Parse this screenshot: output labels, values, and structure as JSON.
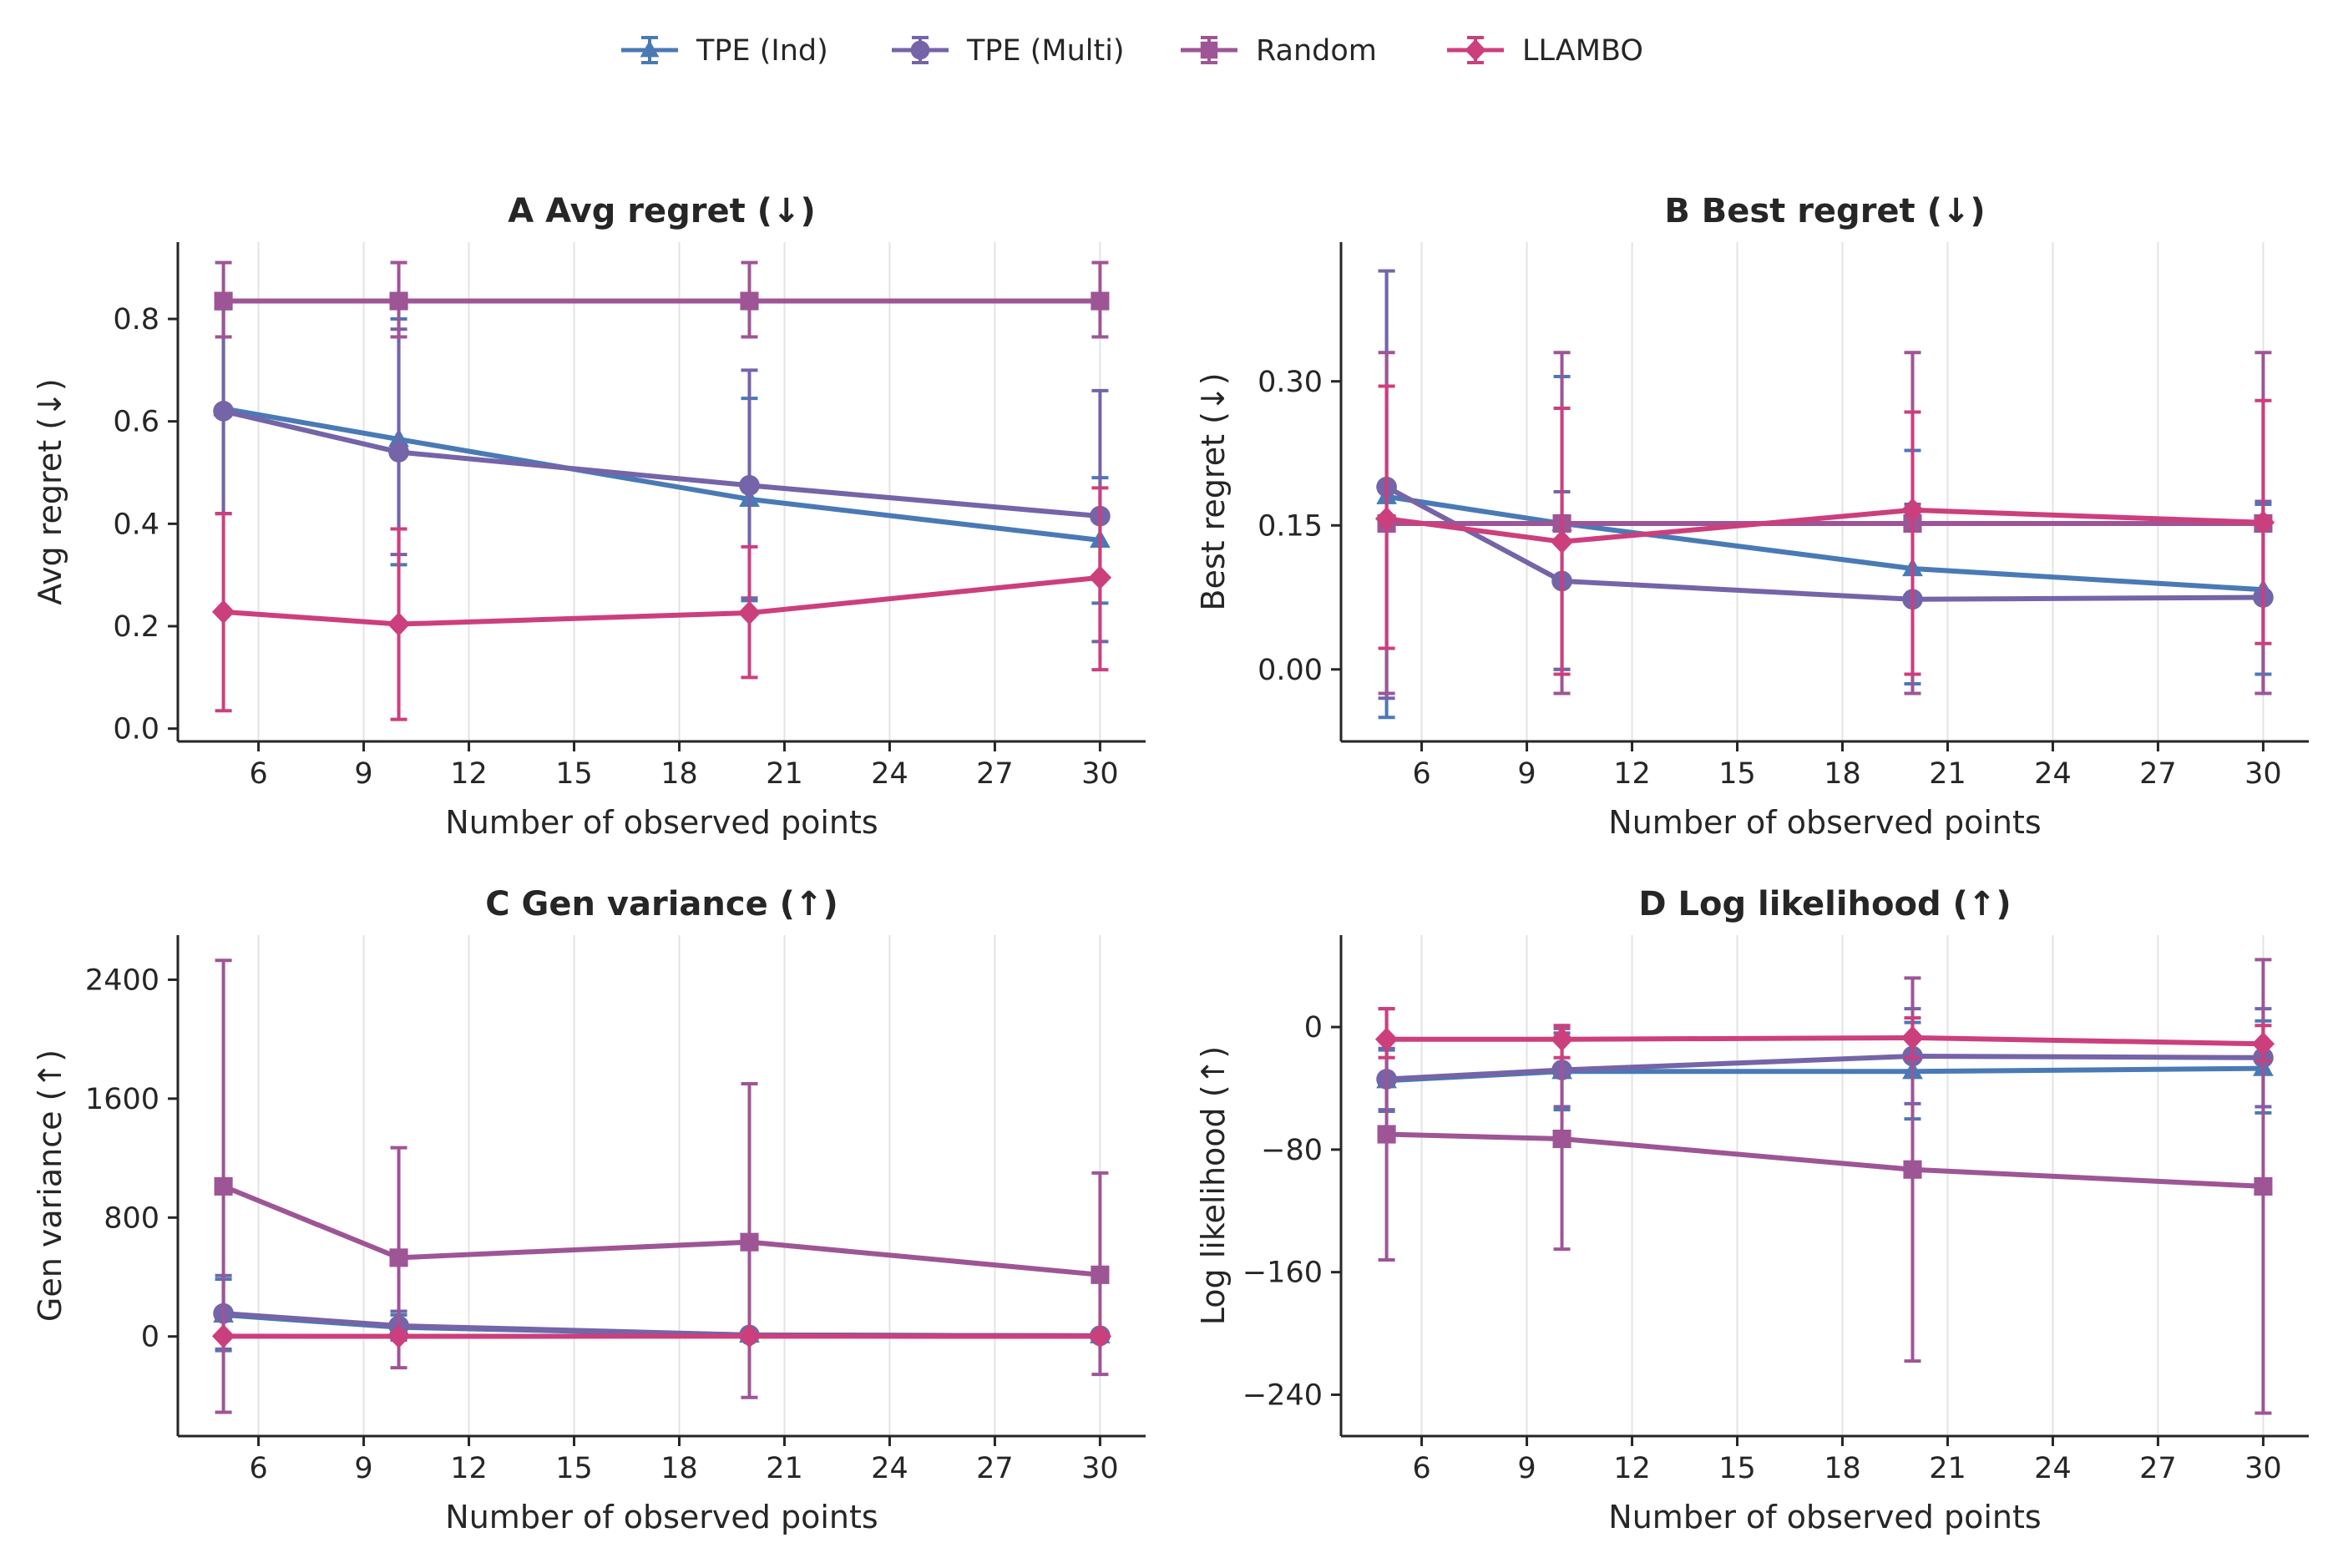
{
  "legend": [
    {
      "label": "TPE (Ind)",
      "color": "#4a7ab5",
      "marker": "triangle"
    },
    {
      "label": "TPE (Multi)",
      "color": "#7564a8",
      "marker": "circle"
    },
    {
      "label": "Random",
      "color": "#9e5596",
      "marker": "square"
    },
    {
      "label": "LLAMBO",
      "color": "#cc3f7d",
      "marker": "diamond"
    }
  ],
  "chart_data": [
    {
      "type": "line",
      "panel": "A",
      "title": "A  Avg regret (↓)",
      "xlabel": "Number of observed points",
      "ylabel": "Avg regret (↓)",
      "xlim": [
        3.7,
        31.3
      ],
      "ylim": [
        -0.025,
        0.95
      ],
      "xticks": [
        6,
        9,
        12,
        15,
        18,
        21,
        24,
        27,
        30
      ],
      "yticks": [
        0.0,
        0.2,
        0.4,
        0.6,
        0.8
      ],
      "ytick_labels": [
        "0.0",
        "0.2",
        "0.4",
        "0.6",
        "0.8"
      ],
      "x": [
        5,
        10,
        20,
        30
      ],
      "series": [
        {
          "name": "TPE (Ind)",
          "values": [
            0.625,
            0.565,
            0.448,
            0.368
          ],
          "lower": [
            0.42,
            0.32,
            0.25,
            0.245
          ],
          "upper": [
            0.83,
            0.8,
            0.645,
            0.49
          ]
        },
        {
          "name": "TPE (Multi)",
          "values": [
            0.62,
            0.54,
            0.475,
            0.415
          ],
          "lower": [
            0.42,
            0.34,
            0.255,
            0.17
          ],
          "upper": [
            0.82,
            0.78,
            0.7,
            0.66
          ]
        },
        {
          "name": "Random",
          "values": [
            0.835,
            0.835,
            0.835,
            0.835
          ],
          "lower": [
            0.765,
            0.765,
            0.765,
            0.765
          ],
          "upper": [
            0.91,
            0.91,
            0.91,
            0.91
          ]
        },
        {
          "name": "LLAMBO",
          "values": [
            0.228,
            0.204,
            0.226,
            0.295
          ],
          "lower": [
            0.035,
            0.018,
            0.1,
            0.115
          ],
          "upper": [
            0.42,
            0.39,
            0.355,
            0.47
          ]
        }
      ]
    },
    {
      "type": "line",
      "panel": "B",
      "title": "B  Best regret (↓)",
      "xlabel": "Number of observed points",
      "ylabel": "Best regret (↓)",
      "xlim": [
        3.7,
        31.3
      ],
      "ylim": [
        -0.075,
        0.445
      ],
      "xticks": [
        6,
        9,
        12,
        15,
        18,
        21,
        24,
        27,
        30
      ],
      "yticks": [
        0.0,
        0.15,
        0.3
      ],
      "ytick_labels": [
        "0.00",
        "0.15",
        "0.30"
      ],
      "x": [
        5,
        10,
        20,
        30
      ],
      "series": [
        {
          "name": "TPE (Ind)",
          "values": [
            0.18,
            0.152,
            0.105,
            0.083
          ],
          "lower": [
            -0.05,
            0.0,
            -0.015,
            -0.005
          ],
          "upper": [
            0.415,
            0.305,
            0.228,
            0.172
          ]
        },
        {
          "name": "TPE (Multi)",
          "values": [
            0.19,
            0.092,
            0.073,
            0.075
          ],
          "lower": [
            -0.03,
            0.0,
            -0.025,
            -0.025
          ],
          "upper": [
            0.415,
            0.185,
            0.172,
            0.175
          ]
        },
        {
          "name": "Random",
          "values": [
            0.152,
            0.152,
            0.152,
            0.152
          ],
          "lower": [
            -0.025,
            -0.025,
            -0.025,
            -0.025
          ],
          "upper": [
            0.33,
            0.33,
            0.33,
            0.33
          ]
        },
        {
          "name": "LLAMBO",
          "values": [
            0.157,
            0.133,
            0.166,
            0.153
          ],
          "lower": [
            0.022,
            -0.005,
            -0.005,
            0.027
          ],
          "upper": [
            0.295,
            0.272,
            0.268,
            0.28
          ]
        }
      ]
    },
    {
      "type": "line",
      "panel": "C",
      "title": "C  Gen variance (↑)",
      "xlabel": "Number of observed points",
      "ylabel": "Gen variance (↑)",
      "xlim": [
        3.7,
        31.3
      ],
      "ylim": [
        -670,
        2700
      ],
      "xticks": [
        6,
        9,
        12,
        15,
        18,
        21,
        24,
        27,
        30
      ],
      "yticks": [
        0,
        800,
        1600,
        2400
      ],
      "ytick_labels": [
        "0",
        "800",
        "1600",
        "2400"
      ],
      "x": [
        5,
        10,
        20,
        30
      ],
      "series": [
        {
          "name": "TPE (Ind)",
          "values": [
            145,
            62,
            10,
            5
          ],
          "lower": [
            -95,
            -20,
            -8,
            -3
          ],
          "upper": [
            385,
            145,
            28,
            13
          ]
        },
        {
          "name": "TPE (Multi)",
          "values": [
            155,
            72,
            10,
            5
          ],
          "lower": [
            -85,
            -25,
            -8,
            -3
          ],
          "upper": [
            410,
            170,
            28,
            13
          ]
        },
        {
          "name": "Random",
          "values": [
            1010,
            530,
            635,
            415
          ],
          "lower": [
            -510,
            -210,
            -410,
            -255
          ],
          "upper": [
            2530,
            1270,
            1700,
            1100
          ]
        },
        {
          "name": "LLAMBO",
          "values": [
            2,
            1,
            2,
            1
          ],
          "lower": [
            -5,
            -5,
            -5,
            -5
          ],
          "upper": [
            9,
            7,
            8,
            7
          ]
        }
      ]
    },
    {
      "type": "line",
      "panel": "D",
      "title": "D  Log likelihood (↑)",
      "xlabel": "Number of observed points",
      "ylabel": "Log likelihood (↑)",
      "xlim": [
        3.7,
        31.3
      ],
      "ylim": [
        -267,
        60
      ],
      "xticks": [
        6,
        9,
        12,
        15,
        18,
        21,
        24,
        27,
        30
      ],
      "yticks": [
        -240,
        -160,
        -80,
        0
      ],
      "ytick_labels": [
        "−240",
        "−160",
        "−80",
        "0"
      ],
      "x": [
        5,
        10,
        20,
        30
      ],
      "series": [
        {
          "name": "TPE (Ind)",
          "values": [
            -35,
            -29,
            -29,
            -27
          ],
          "lower": [
            -55,
            -54,
            -60,
            -56
          ],
          "upper": [
            -15,
            -4,
            3,
            4
          ]
        },
        {
          "name": "TPE (Multi)",
          "values": [
            -34,
            -28,
            -19,
            -20
          ],
          "lower": [
            -54,
            -52,
            -50,
            -52
          ],
          "upper": [
            -14,
            -4,
            12,
            12
          ]
        },
        {
          "name": "Random",
          "values": [
            -70,
            -73,
            -93,
            -104
          ],
          "lower": [
            -152,
            -145,
            -218,
            -252
          ],
          "upper": [
            12,
            -1,
            32,
            44
          ]
        },
        {
          "name": "LLAMBO",
          "values": [
            -8,
            -8,
            -7,
            -11
          ],
          "lower": [
            -20,
            -20,
            -20,
            -22
          ],
          "upper": [
            12,
            1,
            6,
            1
          ]
        }
      ]
    }
  ]
}
